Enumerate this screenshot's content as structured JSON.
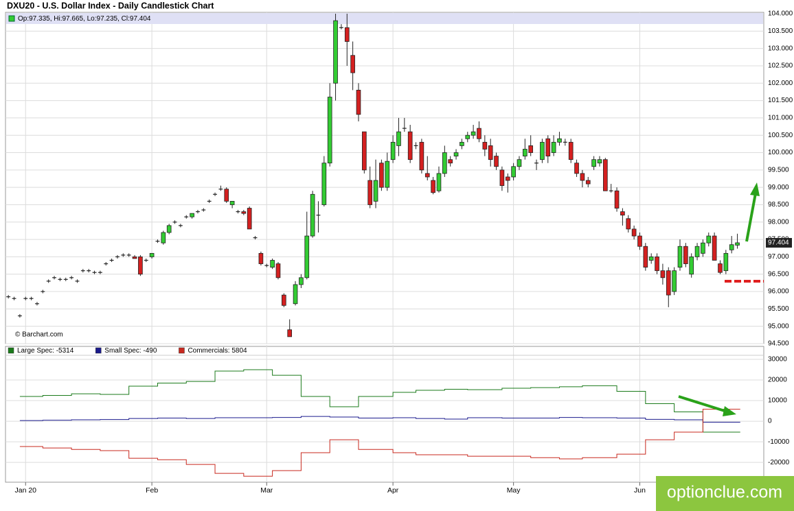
{
  "chart_data": [
    {
      "type": "candlestick",
      "title": "DXU20 - U.S. Dollar Index - Daily Candlestick Chart",
      "ohlc_label": "Op:97.335, Hi:97.665, Lo:97.235, Cl:97.404",
      "last_price_label": "97.404",
      "source": "© Barchart.com",
      "up_color": "#33cc33",
      "down_color": "#d42020",
      "candles": [
        [
          95.85,
          95.9,
          95.8,
          95.85
        ],
        [
          95.8,
          95.85,
          95.75,
          95.8
        ],
        [
          95.3,
          95.35,
          95.25,
          95.3
        ],
        [
          95.8,
          95.85,
          95.75,
          95.8
        ],
        [
          95.8,
          95.85,
          95.75,
          95.8
        ],
        [
          95.65,
          95.7,
          95.6,
          95.65
        ],
        [
          96.0,
          96.05,
          95.95,
          96.0
        ],
        [
          96.3,
          96.35,
          96.25,
          96.3
        ],
        [
          96.4,
          96.45,
          96.35,
          96.4
        ],
        [
          96.35,
          96.4,
          96.3,
          96.35
        ],
        [
          96.35,
          96.4,
          96.3,
          96.35
        ],
        [
          96.4,
          96.45,
          96.35,
          96.4
        ],
        [
          96.3,
          96.35,
          96.25,
          96.3
        ],
        [
          96.6,
          96.65,
          96.55,
          96.6
        ],
        [
          96.6,
          96.65,
          96.55,
          96.6
        ],
        [
          96.55,
          96.6,
          96.5,
          96.55
        ],
        [
          96.55,
          96.6,
          96.5,
          96.55
        ],
        [
          96.8,
          96.85,
          96.75,
          96.8
        ],
        [
          96.9,
          96.95,
          96.85,
          96.9
        ],
        [
          97.0,
          97.05,
          96.95,
          97.0
        ],
        [
          97.05,
          97.1,
          97.0,
          97.05
        ],
        [
          97.05,
          97.1,
          97.0,
          97.05
        ],
        [
          97.0,
          97.05,
          96.95,
          96.95
        ],
        [
          97.0,
          97.05,
          96.45,
          96.5
        ],
        [
          96.9,
          96.95,
          96.85,
          96.9
        ],
        [
          97.0,
          97.1,
          96.95,
          97.1
        ],
        [
          97.45,
          97.5,
          97.4,
          97.45
        ],
        [
          97.4,
          97.75,
          97.35,
          97.7
        ],
        [
          97.7,
          97.95,
          97.65,
          97.9
        ],
        [
          98.0,
          98.05,
          97.95,
          98.0
        ],
        [
          97.9,
          97.95,
          97.85,
          97.9
        ],
        [
          98.15,
          98.2,
          98.1,
          98.15
        ],
        [
          98.15,
          98.25,
          98.1,
          98.25
        ],
        [
          98.3,
          98.35,
          98.25,
          98.3
        ],
        [
          98.35,
          98.4,
          98.3,
          98.35
        ],
        [
          98.6,
          98.65,
          98.55,
          98.6
        ],
        [
          98.8,
          98.85,
          98.75,
          98.8
        ],
        [
          98.95,
          99.05,
          98.9,
          98.95
        ],
        [
          98.95,
          99.0,
          98.55,
          98.6
        ],
        [
          98.5,
          98.6,
          98.4,
          98.6
        ],
        [
          98.3,
          98.35,
          98.25,
          98.3
        ],
        [
          98.3,
          98.35,
          98.2,
          98.25
        ],
        [
          98.4,
          98.45,
          97.8,
          97.8
        ],
        [
          97.55,
          97.6,
          97.5,
          97.55
        ],
        [
          97.1,
          97.15,
          96.75,
          96.8
        ],
        [
          96.75,
          96.8,
          96.7,
          96.75
        ],
        [
          96.7,
          96.95,
          96.65,
          96.9
        ],
        [
          96.8,
          96.85,
          96.35,
          96.4
        ],
        [
          95.9,
          95.95,
          95.55,
          95.6
        ],
        [
          94.9,
          95.2,
          94.7,
          94.7
        ],
        [
          95.65,
          96.3,
          95.6,
          96.2
        ],
        [
          96.2,
          96.5,
          96.1,
          96.4
        ],
        [
          96.4,
          98.3,
          96.35,
          97.6
        ],
        [
          97.6,
          98.9,
          97.55,
          98.8
        ],
        [
          98.2,
          98.6,
          97.7,
          98.2
        ],
        [
          98.5,
          99.9,
          98.45,
          99.7
        ],
        [
          99.7,
          102.0,
          99.6,
          101.6
        ],
        [
          102.0,
          104.0,
          101.5,
          103.8
        ],
        [
          103.6,
          103.7,
          103.55,
          103.6
        ],
        [
          103.6,
          104.0,
          102.5,
          103.2
        ],
        [
          102.8,
          103.2,
          101.8,
          102.3
        ],
        [
          101.8,
          102.0,
          100.9,
          101.1
        ],
        [
          100.6,
          100.6,
          99.4,
          99.5
        ],
        [
          99.2,
          99.6,
          98.4,
          98.5
        ],
        [
          98.6,
          99.8,
          98.4,
          99.2
        ],
        [
          99.7,
          99.8,
          98.9,
          99.0
        ],
        [
          99.0,
          100.0,
          98.9,
          99.75
        ],
        [
          99.8,
          100.5,
          99.7,
          100.3
        ],
        [
          100.2,
          101.0,
          99.9,
          100.6
        ],
        [
          100.7,
          101.0,
          100.6,
          100.7
        ],
        [
          100.6,
          100.8,
          99.7,
          99.8
        ],
        [
          100.2,
          100.3,
          100.1,
          100.2
        ],
        [
          100.3,
          100.4,
          99.4,
          99.5
        ],
        [
          99.4,
          99.9,
          99.2,
          99.3
        ],
        [
          99.2,
          99.3,
          98.8,
          98.85
        ],
        [
          98.9,
          99.6,
          98.85,
          99.4
        ],
        [
          99.4,
          100.2,
          99.3,
          100.0
        ],
        [
          99.8,
          99.9,
          99.6,
          99.7
        ],
        [
          99.9,
          100.1,
          99.8,
          100.0
        ],
        [
          100.2,
          100.4,
          100.1,
          100.3
        ],
        [
          100.4,
          100.6,
          100.3,
          100.5
        ],
        [
          100.5,
          100.8,
          100.4,
          100.6
        ],
        [
          100.7,
          100.9,
          100.3,
          100.4
        ],
        [
          100.3,
          100.5,
          99.9,
          100.1
        ],
        [
          100.2,
          100.4,
          99.6,
          99.8
        ],
        [
          99.9,
          100.0,
          99.5,
          99.6
        ],
        [
          99.5,
          99.6,
          98.9,
          99.05
        ],
        [
          99.3,
          99.4,
          98.85,
          99.2
        ],
        [
          99.3,
          99.7,
          99.2,
          99.6
        ],
        [
          99.6,
          99.9,
          99.5,
          99.8
        ],
        [
          99.9,
          100.4,
          99.8,
          100.1
        ],
        [
          100.2,
          100.5,
          99.9,
          100.0
        ],
        [
          99.7,
          99.8,
          99.5,
          99.7
        ],
        [
          99.8,
          100.4,
          99.7,
          100.3
        ],
        [
          100.4,
          100.5,
          99.7,
          99.9
        ],
        [
          100.0,
          100.5,
          99.9,
          100.3
        ],
        [
          100.3,
          100.6,
          100.2,
          100.4
        ],
        [
          100.3,
          100.4,
          100.2,
          100.3
        ],
        [
          100.3,
          100.4,
          99.7,
          99.8
        ],
        [
          99.7,
          99.8,
          99.3,
          99.4
        ],
        [
          99.4,
          99.5,
          99.0,
          99.2
        ],
        [
          99.2,
          99.3,
          99.0,
          99.1
        ],
        [
          99.6,
          99.9,
          99.5,
          99.8
        ],
        [
          99.7,
          99.9,
          99.6,
          99.8
        ],
        [
          99.8,
          99.85,
          98.9,
          98.9
        ],
        [
          98.9,
          99.1,
          98.85,
          98.9
        ],
        [
          98.9,
          99.0,
          98.3,
          98.4
        ],
        [
          98.3,
          98.4,
          97.9,
          98.2
        ],
        [
          98.1,
          98.2,
          97.7,
          97.8
        ],
        [
          97.8,
          97.9,
          97.5,
          97.6
        ],
        [
          97.6,
          97.7,
          97.2,
          97.3
        ],
        [
          97.3,
          97.4,
          96.6,
          96.7
        ],
        [
          96.9,
          97.1,
          96.8,
          97.0
        ],
        [
          97.0,
          97.1,
          96.5,
          96.6
        ],
        [
          96.6,
          96.8,
          96.2,
          96.4
        ],
        [
          96.6,
          96.7,
          95.55,
          95.9
        ],
        [
          96.0,
          96.7,
          95.9,
          96.6
        ],
        [
          96.7,
          97.5,
          96.6,
          97.3
        ],
        [
          97.3,
          97.4,
          96.7,
          96.8
        ],
        [
          96.5,
          97.1,
          96.4,
          97.0
        ],
        [
          97.0,
          97.4,
          96.9,
          97.3
        ],
        [
          97.1,
          97.5,
          97.0,
          97.4
        ],
        [
          97.4,
          97.7,
          97.3,
          97.6
        ],
        [
          97.6,
          97.7,
          96.9,
          96.9
        ],
        [
          96.8,
          96.9,
          96.5,
          96.55
        ],
        [
          96.6,
          97.2,
          96.5,
          97.1
        ],
        [
          97.2,
          97.6,
          97.1,
          97.35
        ],
        [
          97.335,
          97.665,
          97.235,
          97.404
        ]
      ],
      "xlim": [
        -0.5,
        131.6
      ],
      "xticks": [
        {
          "value": 3,
          "label": "Jan 20"
        },
        {
          "value": 25,
          "label": "Feb"
        },
        {
          "value": 45,
          "label": "Mar"
        },
        {
          "value": 67,
          "label": "Apr"
        },
        {
          "value": 88,
          "label": "May"
        },
        {
          "value": 110,
          "label": "Jun"
        }
      ],
      "ylim": [
        94.5,
        104.0
      ],
      "yticks": [
        {
          "value": 94.5,
          "label": "94.500"
        },
        {
          "value": 95.0,
          "label": "95.000"
        },
        {
          "value": 95.5,
          "label": "95.500"
        },
        {
          "value": 96.0,
          "label": "96.000"
        },
        {
          "value": 96.5,
          "label": "96.500"
        },
        {
          "value": 97.0,
          "label": "97.000"
        },
        {
          "value": 97.5,
          "label": "97.500"
        },
        {
          "value": 98.0,
          "label": "98.000"
        },
        {
          "value": 98.5,
          "label": "98.500"
        },
        {
          "value": 99.0,
          "label": "99.000"
        },
        {
          "value": 99.5,
          "label": "99.500"
        },
        {
          "value": 100.0,
          "label": "100.000"
        },
        {
          "value": 100.5,
          "label": "100.500"
        },
        {
          "value": 101.0,
          "label": "101.000"
        },
        {
          "value": 101.5,
          "label": "101.500"
        },
        {
          "value": 102.0,
          "label": "102.000"
        },
        {
          "value": 102.5,
          "label": "102.500"
        },
        {
          "value": 103.0,
          "label": "103.000"
        },
        {
          "value": 103.5,
          "label": "103.500"
        },
        {
          "value": 104.0,
          "label": "104.000"
        }
      ],
      "grid": true
    },
    {
      "type": "step",
      "x": [
        2,
        6,
        11,
        16,
        21,
        26,
        31,
        36,
        41,
        46,
        51,
        56,
        61,
        67,
        71,
        76,
        80,
        86,
        91,
        96,
        100,
        106,
        111,
        116,
        121
      ],
      "series": [
        {
          "name": "Large Spec: -5314",
          "color": "#1a7a1a",
          "values": [
            12000,
            12500,
            13300,
            13000,
            17000,
            18500,
            19300,
            24300,
            25000,
            22300,
            12000,
            7000,
            12000,
            14000,
            15000,
            15500,
            15300,
            16000,
            16300,
            16700,
            17200,
            14500,
            8500,
            4500,
            -5314
          ]
        },
        {
          "name": "Small Spec: -490",
          "color": "#1a1a8c",
          "values": [
            300,
            500,
            700,
            800,
            1300,
            1500,
            1300,
            1700,
            1700,
            1800,
            2300,
            2000,
            1500,
            1700,
            1300,
            1000,
            1700,
            1500,
            1500,
            1800,
            1700,
            1500,
            900,
            700,
            -490
          ]
        },
        {
          "name": "Commercials: 5804",
          "color": "#c8281e",
          "values": [
            -12300,
            -13000,
            -13700,
            -14300,
            -18000,
            -18700,
            -21000,
            -25300,
            -26700,
            -24000,
            -15300,
            -9000,
            -13700,
            -15300,
            -16300,
            -16300,
            -17000,
            -17000,
            -17700,
            -18300,
            -17700,
            -16000,
            -9000,
            -5300,
            5804
          ]
        }
      ],
      "xlim": [
        -0.5,
        131.6
      ],
      "ylim": [
        -29600,
        36300
      ],
      "yticks": [
        -20000,
        -10000,
        0,
        10000,
        20000,
        30000
      ],
      "grid": true
    }
  ],
  "watermark": "optionclue.com"
}
